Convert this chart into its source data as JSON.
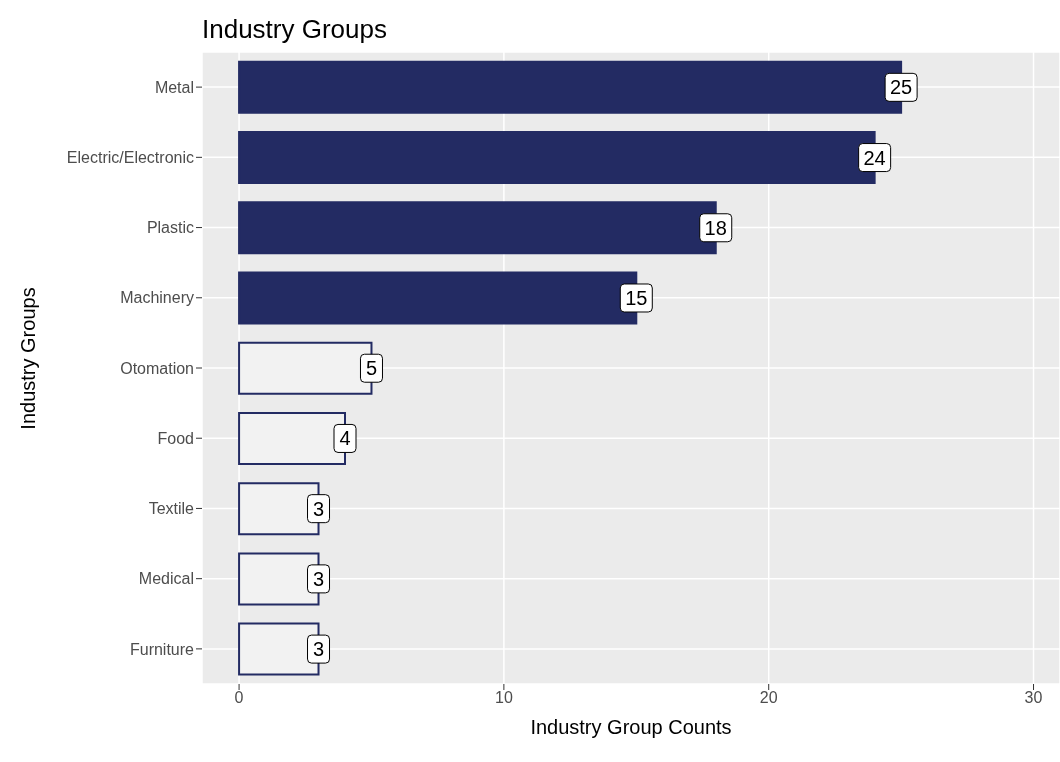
{
  "chart_data": {
    "type": "bar",
    "orientation": "horizontal",
    "title": "Industry Groups",
    "xlabel": "Industry Group Counts",
    "ylabel": "Industry Groups",
    "categories": [
      "Metal",
      "Electric/Electronic",
      "Plastic",
      "Machinery",
      "Otomation",
      "Food",
      "Textile",
      "Medical",
      "Furniture"
    ],
    "values": [
      25,
      24,
      18,
      15,
      5,
      4,
      3,
      3,
      3
    ],
    "color": "#232b63",
    "colors": [
      "#232b63",
      "#232b63",
      "#232b63",
      "#232b63",
      "#f2f2f2",
      "#f2f2f2",
      "#f2f2f2",
      "#f2f2f2",
      "#f2f2f2"
    ],
    "xlim": [
      -1.4,
      31
    ],
    "xticks": [
      0,
      10,
      20,
      30
    ],
    "grid": true,
    "data_labels": true
  }
}
